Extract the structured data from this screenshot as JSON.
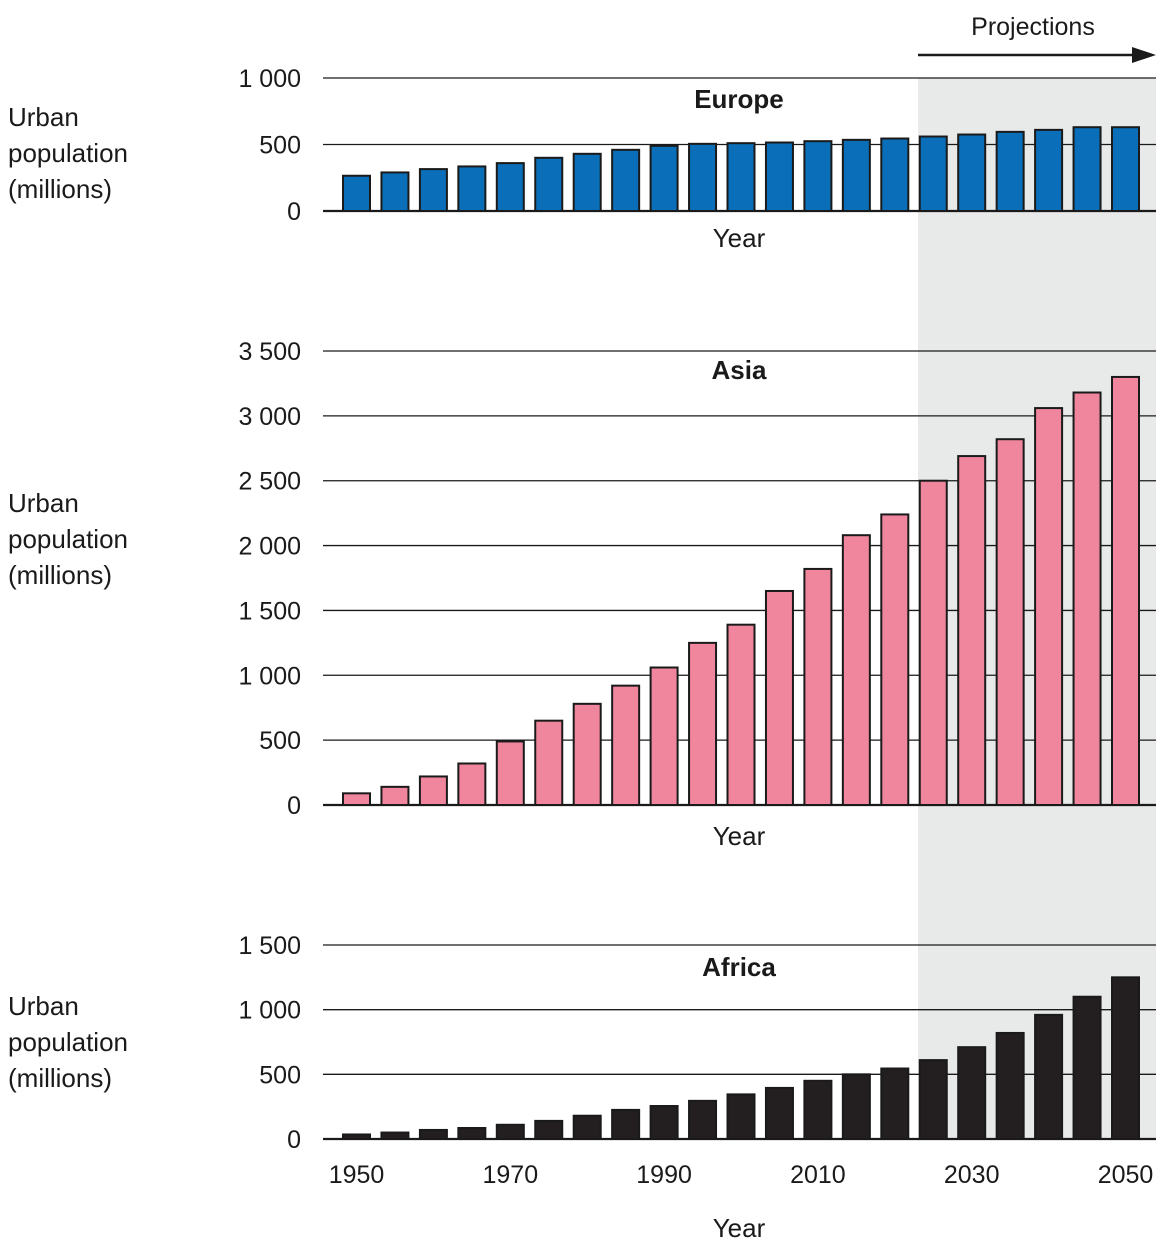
{
  "projection_label": "Projections",
  "chart_data": [
    {
      "type": "bar",
      "title": "Europe",
      "xlabel": "Year",
      "ylabel": "Urban population (millions)",
      "ylabel_lines": [
        "Urban",
        "population",
        "(millions)"
      ],
      "ylim": [
        0,
        1000
      ],
      "yticks": [
        0,
        500,
        1000
      ],
      "ytick_labels": [
        "0",
        "500",
        "1 000"
      ],
      "color": "#0a6fb8",
      "x": [
        1950,
        1955,
        1960,
        1965,
        1970,
        1975,
        1980,
        1985,
        1990,
        1995,
        2000,
        2005,
        2010,
        2015,
        2020,
        2025,
        2030,
        2035,
        2040,
        2045,
        2050
      ],
      "values": [
        265,
        290,
        315,
        335,
        360,
        400,
        430,
        460,
        490,
        505,
        510,
        515,
        525,
        535,
        545,
        560,
        575,
        595,
        610,
        630,
        630
      ]
    },
    {
      "type": "bar",
      "title": "Asia",
      "xlabel": "Year",
      "ylabel": "Urban population (millions)",
      "ylabel_lines": [
        "Urban",
        "population",
        "(millions)"
      ],
      "ylim": [
        0,
        3500
      ],
      "yticks": [
        0,
        500,
        1000,
        1500,
        2000,
        2500,
        3000,
        3500
      ],
      "ytick_labels": [
        "0",
        "500",
        "1 000",
        "1 500",
        "2 000",
        "2 500",
        "3 000",
        "3 500"
      ],
      "color": "#ef869d",
      "x": [
        1950,
        1955,
        1960,
        1965,
        1970,
        1975,
        1980,
        1985,
        1990,
        1995,
        2000,
        2005,
        2010,
        2015,
        2020,
        2025,
        2030,
        2035,
        2040,
        2045,
        2050
      ],
      "values": [
        90,
        140,
        220,
        320,
        490,
        650,
        780,
        920,
        1060,
        1250,
        1390,
        1650,
        1820,
        2080,
        2240,
        2500,
        2690,
        2820,
        3060,
        3180,
        3300
      ]
    },
    {
      "type": "bar",
      "title": "Africa",
      "xlabel": "Year",
      "ylabel": "Urban population (millions)",
      "ylabel_lines": [
        "Urban",
        "population",
        "(millions)"
      ],
      "ylim": [
        0,
        1500
      ],
      "yticks": [
        0,
        500,
        1000,
        1500
      ],
      "ytick_labels": [
        "0",
        "500",
        "1 000",
        "1 500"
      ],
      "xtick_labels": [
        "1950",
        "1970",
        "1990",
        "2010",
        "2030",
        "2050"
      ],
      "color": "#231f20",
      "x": [
        1950,
        1955,
        1960,
        1965,
        1970,
        1975,
        1980,
        1985,
        1990,
        1995,
        2000,
        2005,
        2010,
        2015,
        2020,
        2025,
        2030,
        2035,
        2040,
        2045,
        2050
      ],
      "values": [
        35,
        50,
        70,
        85,
        110,
        140,
        180,
        225,
        255,
        295,
        345,
        395,
        450,
        500,
        545,
        610,
        710,
        820,
        960,
        1100,
        1250
      ]
    }
  ]
}
